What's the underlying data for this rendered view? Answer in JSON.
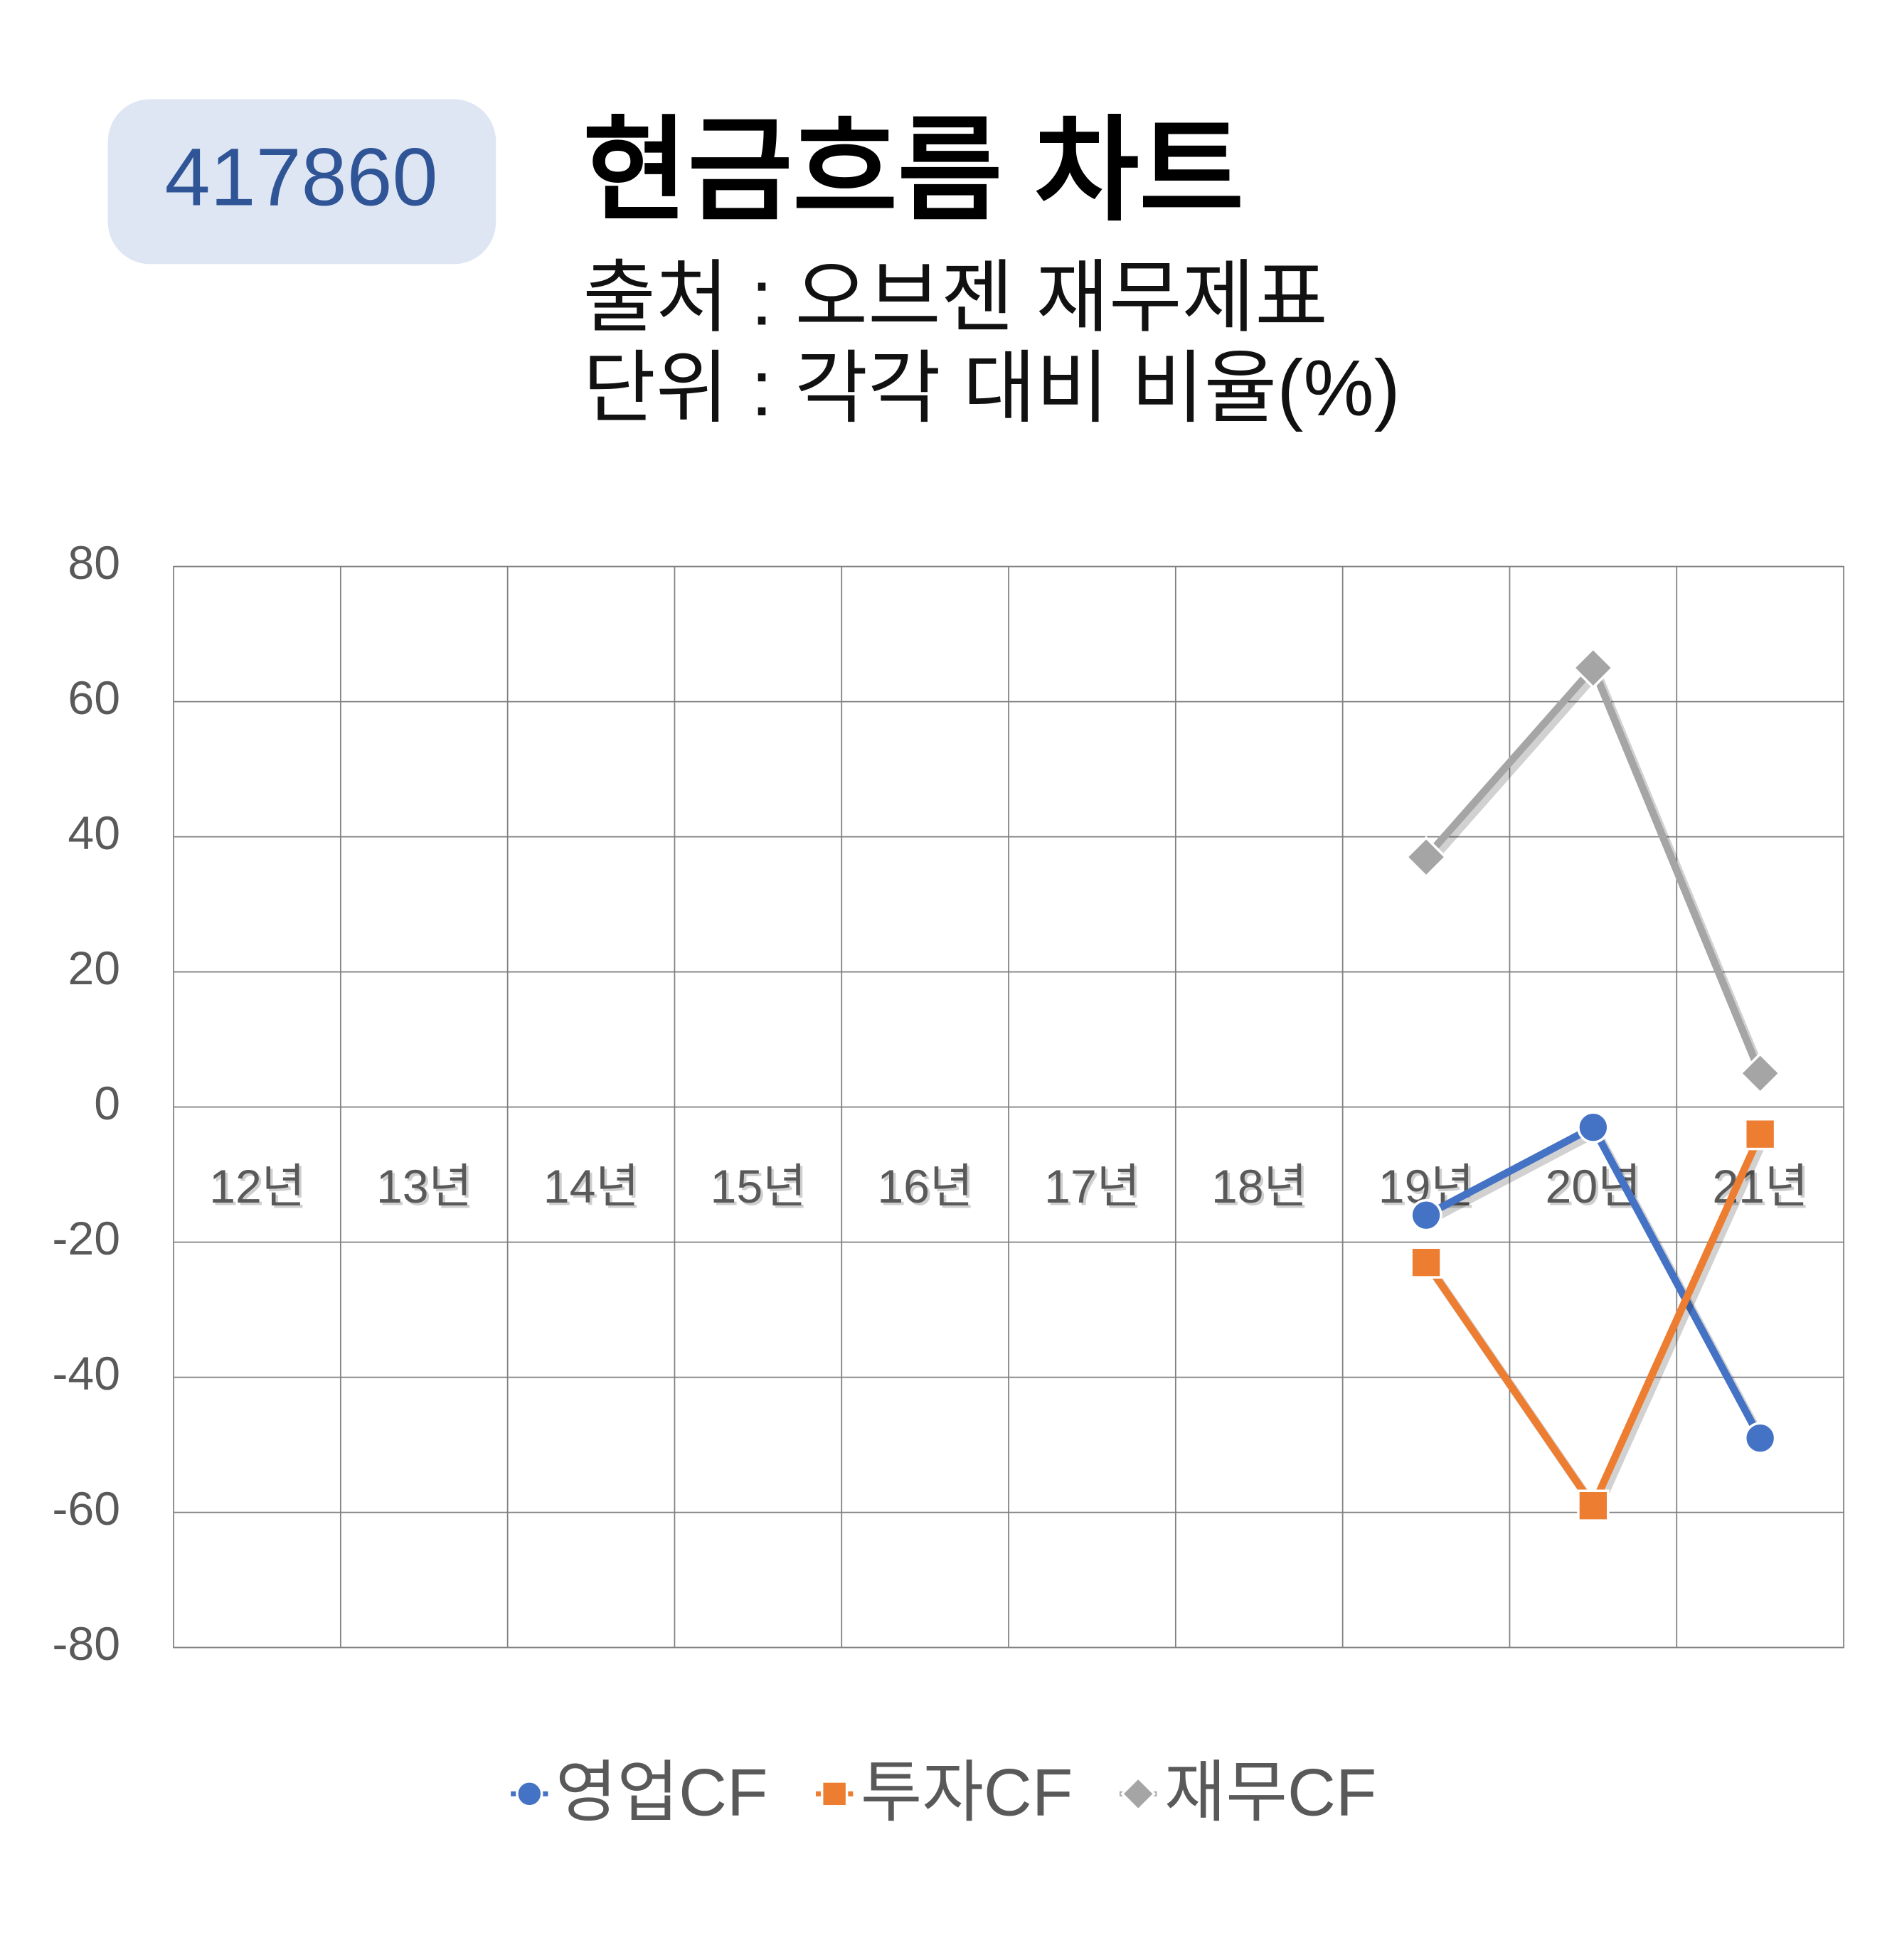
{
  "chart_data": {
    "type": "line",
    "badge": "417860",
    "title": "현금흐름 차트",
    "subtitle": [
      "출처 : 오브젠 재무제표",
      "단위 : 각각 대비 비율(%)"
    ],
    "categories": [
      "12년",
      "13년",
      "14년",
      "15년",
      "16년",
      "17년",
      "18년",
      "19년",
      "20년",
      "21년"
    ],
    "series": [
      {
        "name": "영업CF",
        "color": "#4472c4",
        "marker": "circle",
        "values": [
          null,
          null,
          null,
          null,
          null,
          null,
          null,
          -16,
          -3,
          -49
        ]
      },
      {
        "name": "투자CF",
        "color": "#ed7d31",
        "marker": "square",
        "values": [
          null,
          null,
          null,
          null,
          null,
          null,
          null,
          -23,
          -59,
          -4
        ]
      },
      {
        "name": "재무CF",
        "color": "#a5a5a5",
        "marker": "diamond",
        "values": [
          null,
          null,
          null,
          null,
          null,
          null,
          null,
          37,
          65,
          5
        ]
      }
    ],
    "ylim": [
      -80,
      80
    ],
    "yticks": [
      -80,
      -60,
      -40,
      -20,
      0,
      20,
      40,
      60,
      80
    ],
    "grid": true,
    "legend": "bottom"
  }
}
